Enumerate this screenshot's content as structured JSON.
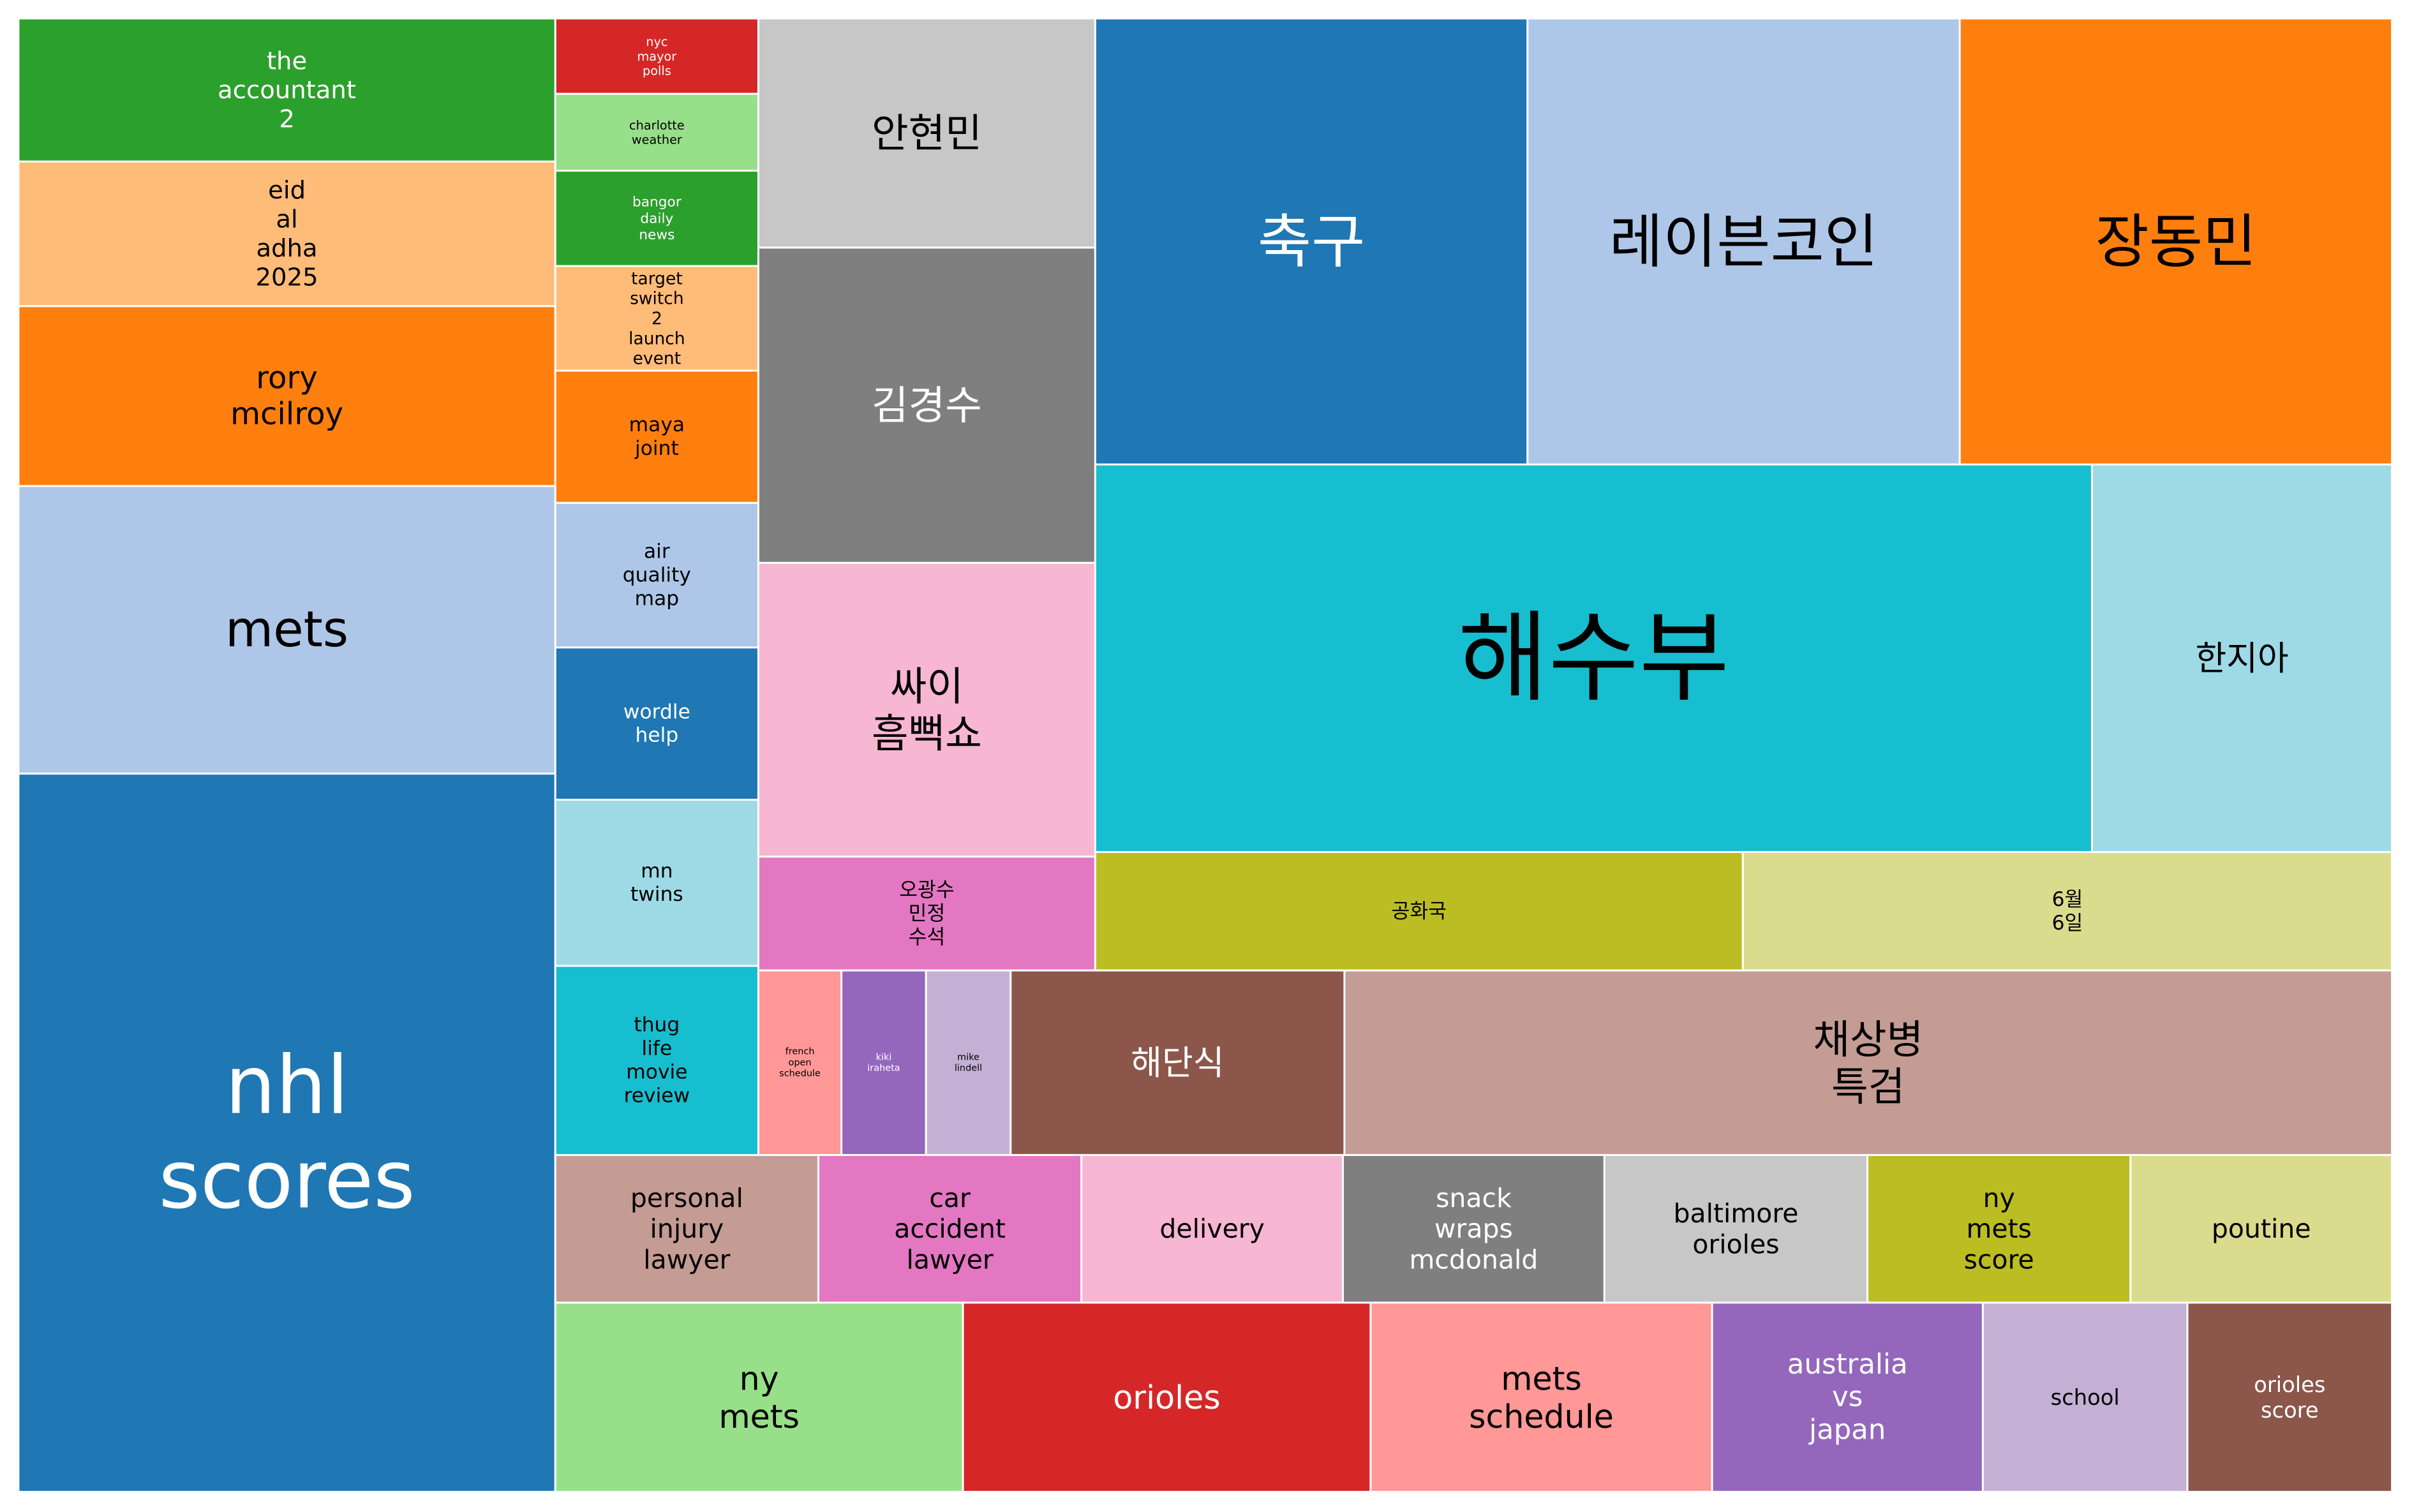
{
  "chart_data": {
    "type": "treemap",
    "title": "",
    "items": [
      {
        "label": "nhl\nscores",
        "color": "#1f77b4",
        "text_color": "#ffffff"
      },
      {
        "label": "mets",
        "color": "#aec7e8",
        "text_color": "#000000"
      },
      {
        "label": "rory\nmcilroy",
        "color": "#ff7f0e",
        "text_color": "#000000"
      },
      {
        "label": "eid\nal\nadha\n2025",
        "color": "#ffbb78",
        "text_color": "#000000"
      },
      {
        "label": "the\naccountant\n2",
        "color": "#2ca02c",
        "text_color": "#ffffff"
      },
      {
        "label": "nyc\nmayor\npolls",
        "color": "#d62728",
        "text_color": "#ffffff"
      },
      {
        "label": "charlotte\nweather",
        "color": "#98df8a",
        "text_color": "#000000"
      },
      {
        "label": "bangor\ndaily\nnews",
        "color": "#2ca02c",
        "text_color": "#ffffff"
      },
      {
        "label": "target\nswitch\n2\nlaunch\nevent",
        "color": "#ffbb78",
        "text_color": "#000000"
      },
      {
        "label": "maya\njoint",
        "color": "#ff7f0e",
        "text_color": "#000000"
      },
      {
        "label": "air\nquality\nmap",
        "color": "#aec7e8",
        "text_color": "#000000"
      },
      {
        "label": "wordle\nhelp",
        "color": "#1f77b4",
        "text_color": "#ffffff"
      },
      {
        "label": "mn\ntwins",
        "color": "#9edae5",
        "text_color": "#000000"
      },
      {
        "label": "thug\nlife\nmovie\nreview",
        "color": "#17becf",
        "text_color": "#000000"
      },
      {
        "label": "안현민",
        "color": "#c7c7c7",
        "text_color": "#000000"
      },
      {
        "label": "김경수",
        "color": "#7f7f7f",
        "text_color": "#ffffff"
      },
      {
        "label": "싸이\n흠뻑쇼",
        "color": "#f7b6d2",
        "text_color": "#000000"
      },
      {
        "label": "오광수\n민정\n수석",
        "color": "#e377c2",
        "text_color": "#000000"
      },
      {
        "label": "축구",
        "color": "#1f77b4",
        "text_color": "#ffffff"
      },
      {
        "label": "레이븐코인",
        "color": "#aec7e8",
        "text_color": "#000000"
      },
      {
        "label": "장동민",
        "color": "#ff7f0e",
        "text_color": "#000000"
      },
      {
        "label": "해수부",
        "color": "#17becf",
        "text_color": "#000000"
      },
      {
        "label": "한지아",
        "color": "#9edae5",
        "text_color": "#000000"
      },
      {
        "label": "공화국",
        "color": "#bcbd22",
        "text_color": "#000000"
      },
      {
        "label": "6월\n6일",
        "color": "#dbdb8d",
        "text_color": "#000000"
      },
      {
        "label": "french\nopen\nschedule",
        "color": "#ff9896",
        "text_color": "#000000"
      },
      {
        "label": "kiki\niraheta",
        "color": "#9467bd",
        "text_color": "#ffffff"
      },
      {
        "label": "mike\nlindell",
        "color": "#c5b0d5",
        "text_color": "#000000"
      },
      {
        "label": "해단식",
        "color": "#8c564b",
        "text_color": "#ffffff"
      },
      {
        "label": "채상병\n특검",
        "color": "#c49c94",
        "text_color": "#000000"
      },
      {
        "label": "personal\ninjury\nlawyer",
        "color": "#c49c94",
        "text_color": "#000000"
      },
      {
        "label": "car\naccident\nlawyer",
        "color": "#e377c2",
        "text_color": "#000000"
      },
      {
        "label": "delivery",
        "color": "#f7b6d2",
        "text_color": "#000000"
      },
      {
        "label": "snack\nwraps\nmcdonald",
        "color": "#7f7f7f",
        "text_color": "#ffffff"
      },
      {
        "label": "baltimore\norioles",
        "color": "#c7c7c7",
        "text_color": "#000000"
      },
      {
        "label": "ny\nmets\nscore",
        "color": "#bcbd22",
        "text_color": "#000000"
      },
      {
        "label": "poutine",
        "color": "#dbdb8d",
        "text_color": "#000000"
      },
      {
        "label": "ny\nmets",
        "color": "#98df8a",
        "text_color": "#000000"
      },
      {
        "label": "orioles",
        "color": "#d62728",
        "text_color": "#ffffff"
      },
      {
        "label": "mets\nschedule",
        "color": "#ff9896",
        "text_color": "#000000"
      },
      {
        "label": "australia\nvs\njapan",
        "color": "#9467bd",
        "text_color": "#ffffff"
      },
      {
        "label": "school",
        "color": "#c5b0d5",
        "text_color": "#000000"
      },
      {
        "label": "orioles\nscore",
        "color": "#8c564b",
        "text_color": "#ffffff"
      }
    ]
  }
}
